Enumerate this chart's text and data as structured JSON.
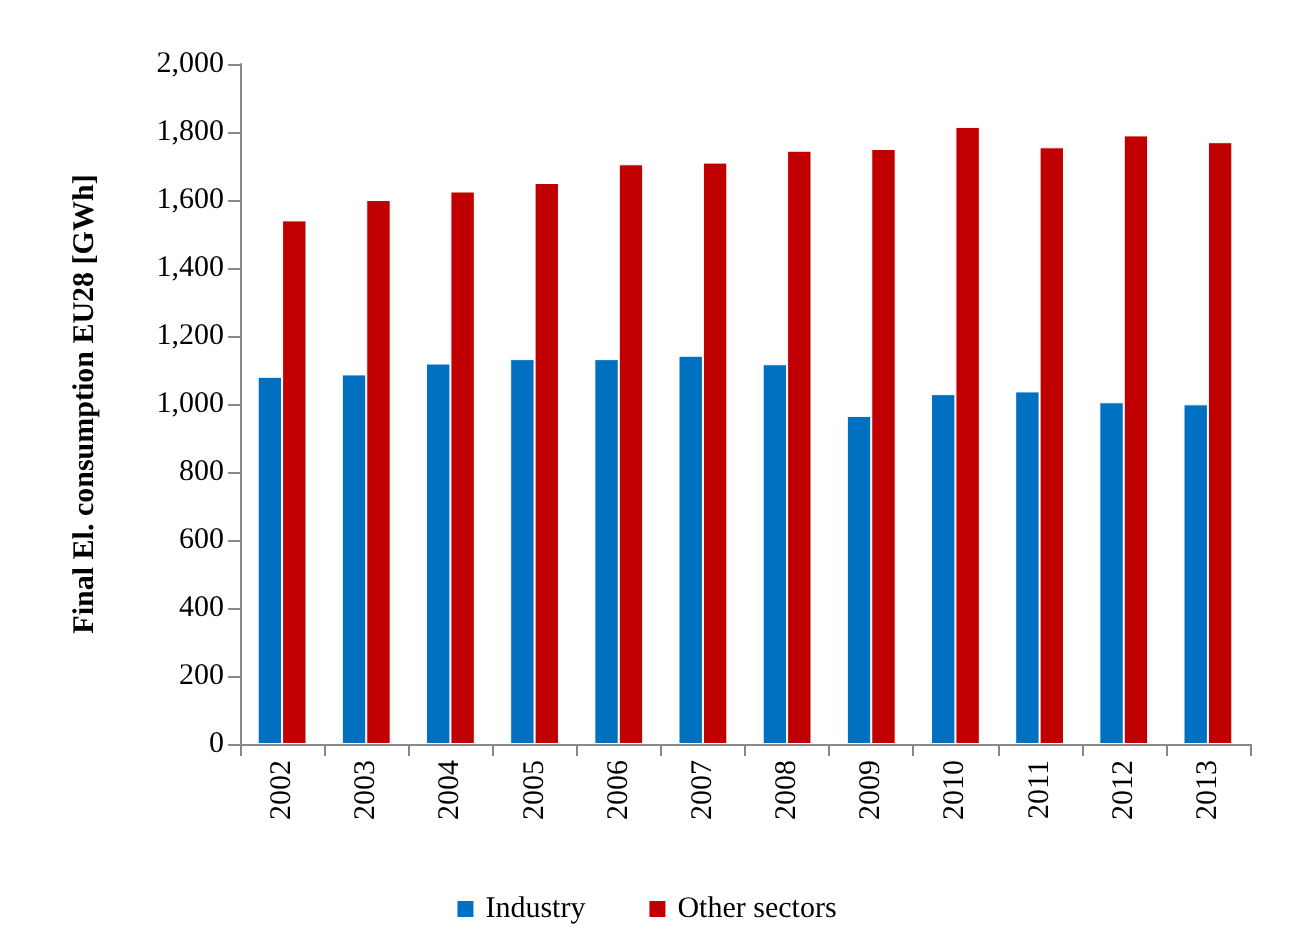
{
  "chart_data": {
    "type": "bar",
    "ylabel": "Final El. consumption EU28 [GWh]",
    "categories": [
      "2002",
      "2003",
      "2004",
      "2005",
      "2006",
      "2007",
      "2008",
      "2009",
      "2010",
      "2011",
      "2012",
      "2013"
    ],
    "series": [
      {
        "name": "Industry",
        "color": "#0070c0",
        "values": [
          1080,
          1087,
          1119,
          1132,
          1132,
          1142,
          1117,
          965,
          1029,
          1037,
          1005,
          999
        ]
      },
      {
        "name": "Other sectors",
        "color": "#c00000",
        "values": [
          1540,
          1600,
          1625,
          1650,
          1705,
          1710,
          1745,
          1750,
          1815,
          1755,
          1790,
          1770
        ]
      }
    ],
    "ylim": [
      0,
      2000
    ],
    "yticks": [
      0,
      200,
      400,
      600,
      800,
      {
        "value": 1000,
        "label": "1,000"
      },
      {
        "value": 1200,
        "label": "1,200"
      },
      {
        "value": 1400,
        "label": "1,400"
      },
      {
        "value": 1600,
        "label": "1,600"
      },
      {
        "value": 1800,
        "label": "1,800"
      },
      {
        "value": 2000,
        "label": "2,000"
      }
    ],
    "grid": false,
    "legend": "bottom"
  }
}
